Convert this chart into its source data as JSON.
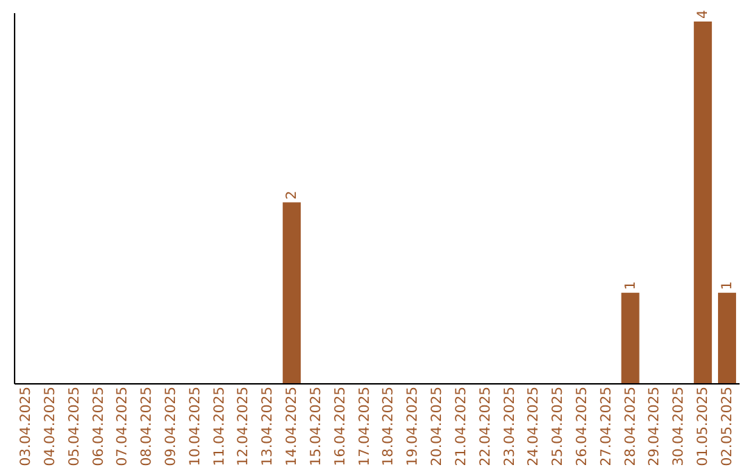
{
  "chart_data": {
    "type": "bar",
    "categories": [
      "03.04.2025",
      "04.04.2025",
      "05.04.2025",
      "06.04.2025",
      "07.04.2025",
      "08.04.2025",
      "09.04.2025",
      "10.04.2025",
      "11.04.2025",
      "12.04.2025",
      "13.04.2025",
      "14.04.2025",
      "15.04.2025",
      "16.04.2025",
      "17.04.2025",
      "18.04.2025",
      "19.04.2025",
      "20.04.2025",
      "21.04.2025",
      "22.04.2025",
      "23.04.2025",
      "24.04.2025",
      "25.04.2025",
      "26.04.2025",
      "27.04.2025",
      "28.04.2025",
      "29.04.2025",
      "30.04.2025",
      "01.05.2025",
      "02.05.2025"
    ],
    "values": [
      0,
      0,
      0,
      0,
      0,
      0,
      0,
      0,
      0,
      0,
      0,
      2,
      0,
      0,
      0,
      0,
      0,
      0,
      0,
      0,
      0,
      0,
      0,
      0,
      0,
      1,
      0,
      0,
      4,
      1
    ],
    "value_labels": [
      null,
      null,
      null,
      null,
      null,
      null,
      null,
      null,
      null,
      null,
      null,
      "2",
      null,
      null,
      null,
      null,
      null,
      null,
      null,
      null,
      null,
      null,
      null,
      null,
      null,
      "1",
      null,
      null,
      "4",
      "1"
    ],
    "color": "#a0592b",
    "ylim": [
      0,
      4.1
    ],
    "tick_labels": "x",
    "grid": false
  }
}
